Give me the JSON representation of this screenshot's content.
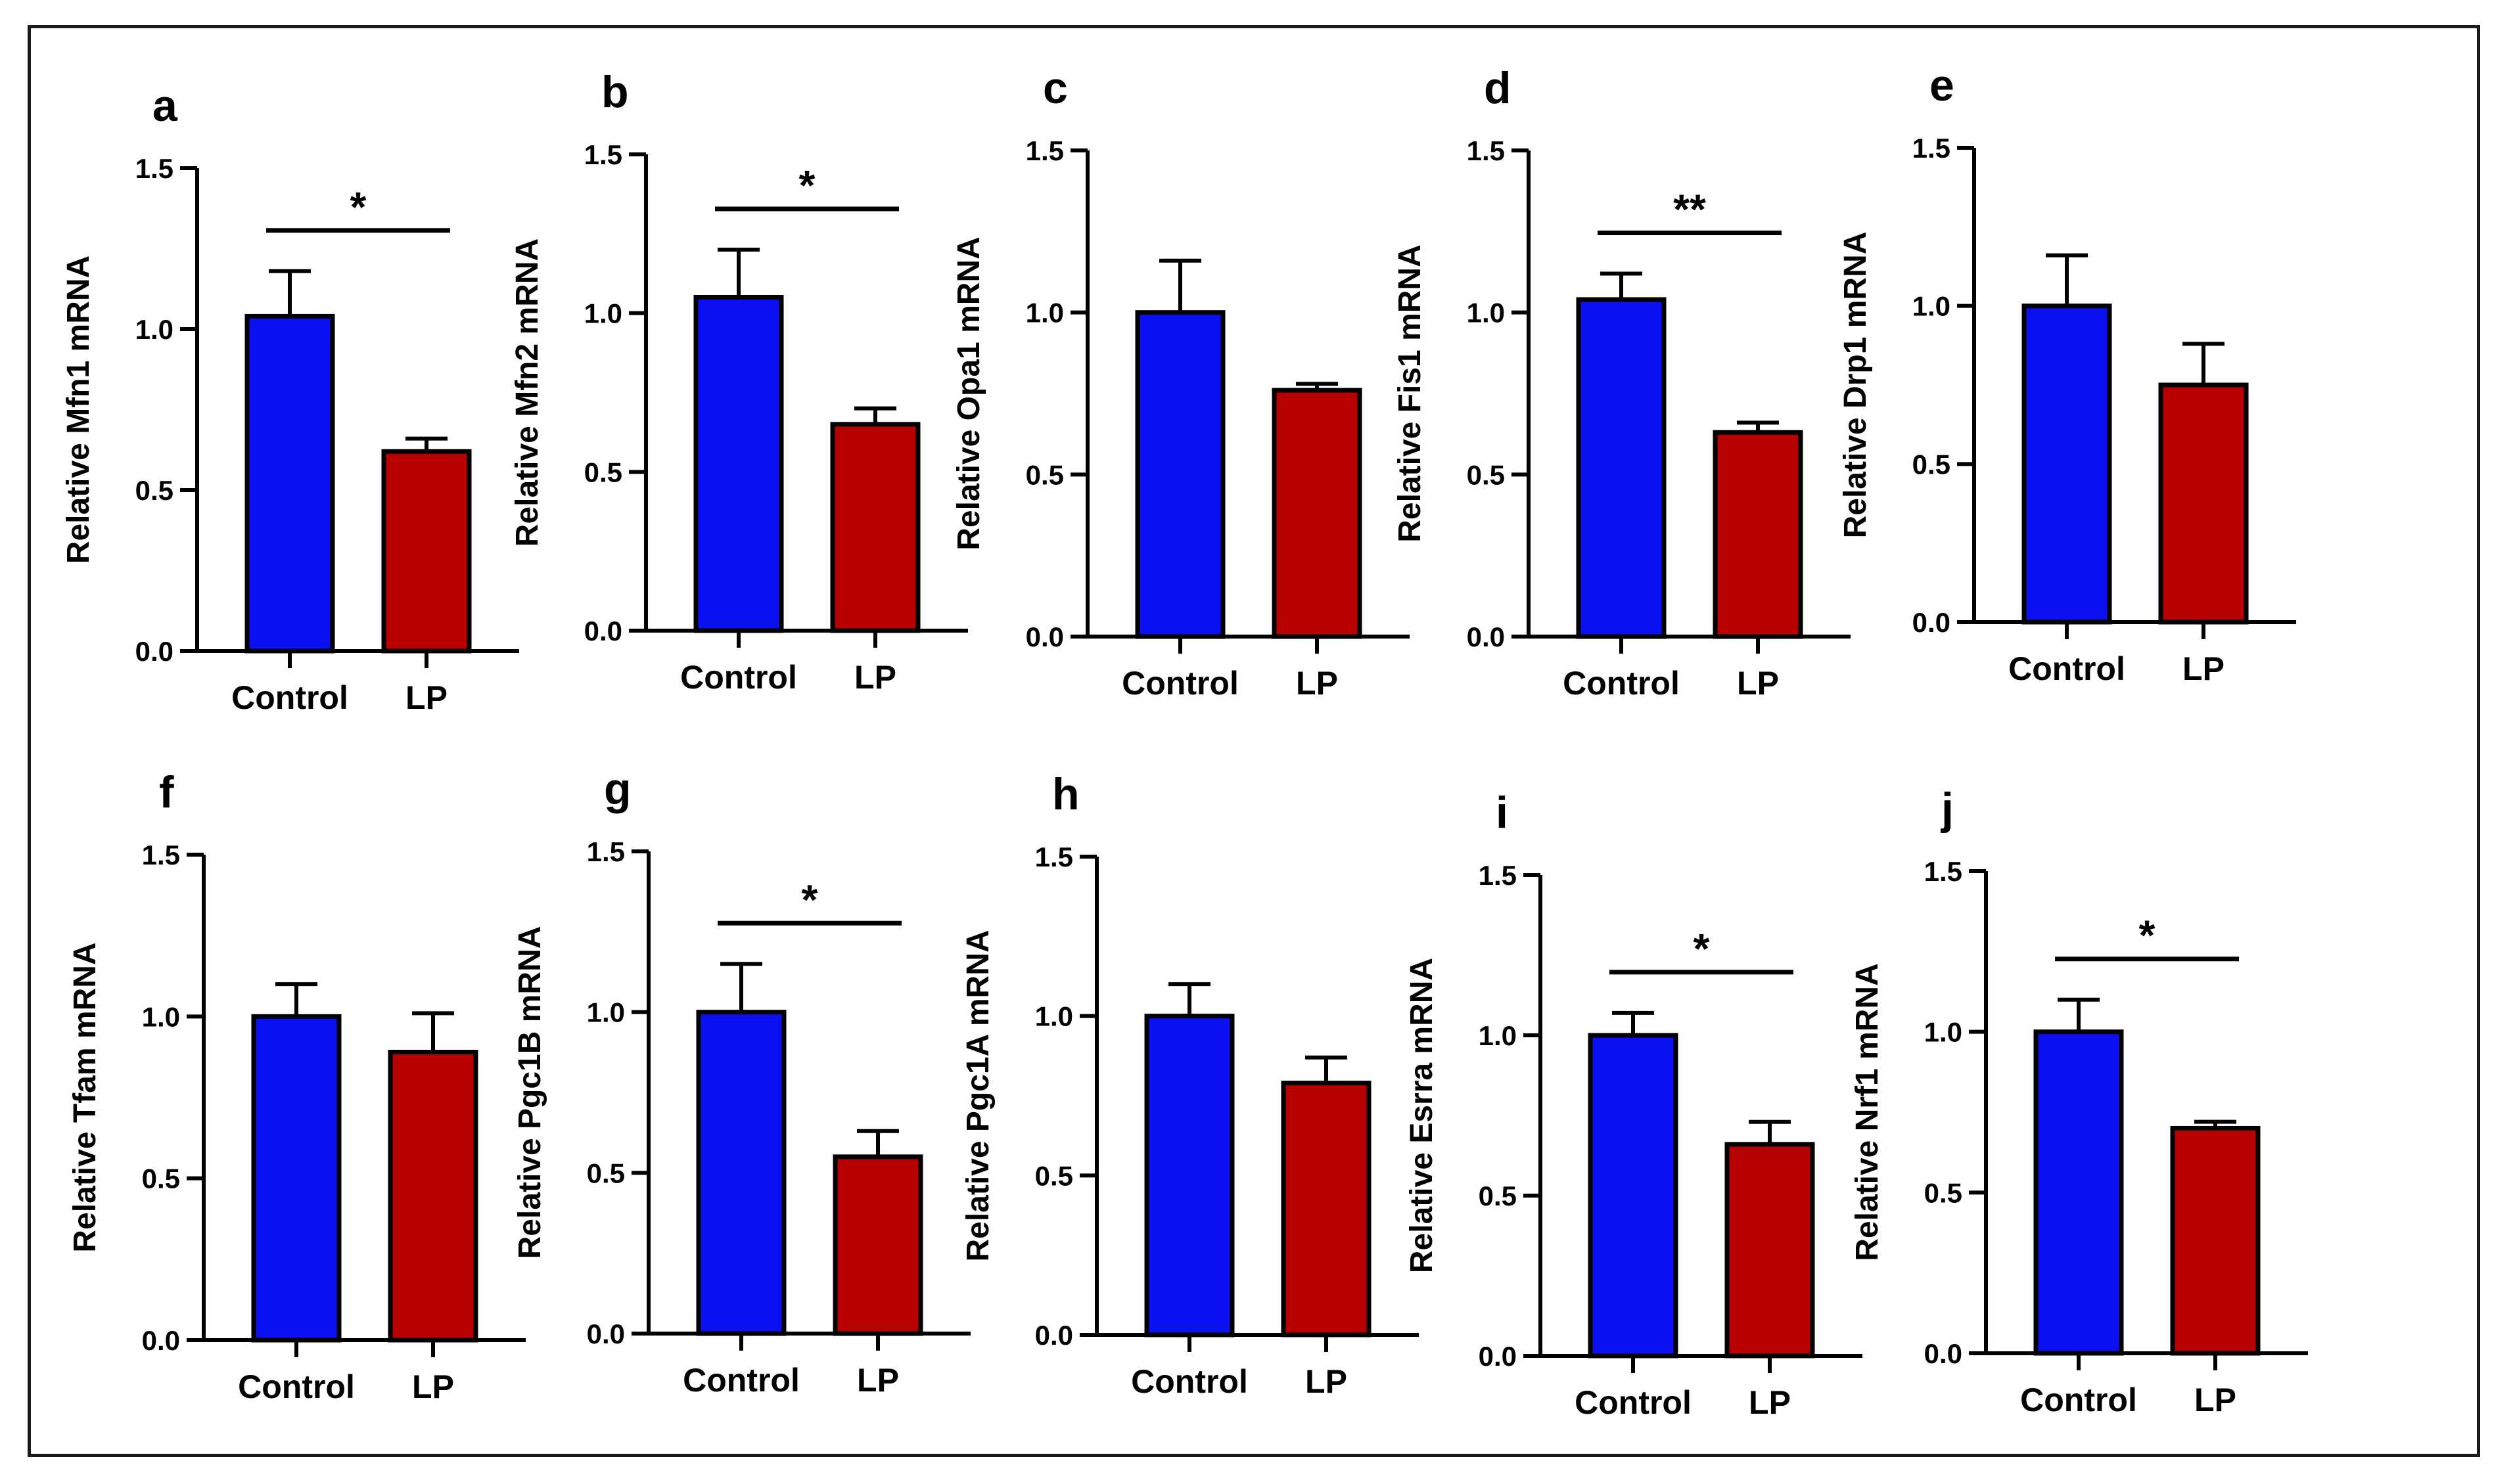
{
  "figure": {
    "colors": {
      "control": "#0a10f0",
      "lp": "#b70000",
      "axis": "#000000"
    }
  },
  "chart_data": [
    {
      "panel": "a",
      "type": "bar",
      "categories": [
        "Control",
        "LP"
      ],
      "values": [
        1.04,
        0.62
      ],
      "errors": [
        0.14,
        0.04
      ],
      "ylabel": "Relative Mfn1 mRNA",
      "ylim": [
        0,
        1.5
      ],
      "yticks": [
        "0.0",
        "0.5",
        "1.0",
        "1.5"
      ],
      "significance": "*"
    },
    {
      "panel": "b",
      "type": "bar",
      "categories": [
        "Control",
        "LP"
      ],
      "values": [
        1.05,
        0.65
      ],
      "errors": [
        0.15,
        0.05
      ],
      "ylabel": "Relative Mfn2 mRNA",
      "ylim": [
        0,
        1.5
      ],
      "yticks": [
        "0.0",
        "0.5",
        "1.0",
        "1.5"
      ],
      "significance": "*"
    },
    {
      "panel": "c",
      "type": "bar",
      "categories": [
        "Control",
        "LP"
      ],
      "values": [
        1.0,
        0.76
      ],
      "errors": [
        0.16,
        0.02
      ],
      "ylabel": "Relative Opa1 mRNA",
      "ylim": [
        0,
        1.5
      ],
      "yticks": [
        "0.0",
        "0.5",
        "1.0",
        "1.5"
      ],
      "significance": ""
    },
    {
      "panel": "d",
      "type": "bar",
      "categories": [
        "Control",
        "LP"
      ],
      "values": [
        1.04,
        0.63
      ],
      "errors": [
        0.08,
        0.03
      ],
      "ylabel": "Relative Fis1 mRNA",
      "ylim": [
        0,
        1.5
      ],
      "yticks": [
        "0.0",
        "0.5",
        "1.0",
        "1.5"
      ],
      "significance": "**"
    },
    {
      "panel": "e",
      "type": "bar",
      "categories": [
        "Control",
        "LP"
      ],
      "values": [
        1.0,
        0.75
      ],
      "errors": [
        0.16,
        0.13
      ],
      "ylabel": "Relative Drp1 mRNA",
      "ylim": [
        0,
        1.5
      ],
      "yticks": [
        "0.0",
        "0.5",
        "1.0",
        "1.5"
      ],
      "significance": ""
    },
    {
      "panel": "f",
      "type": "bar",
      "categories": [
        "Control",
        "LP"
      ],
      "values": [
        1.0,
        0.89
      ],
      "errors": [
        0.1,
        0.12
      ],
      "ylabel": "Relative Tfam mRNA",
      "ylim": [
        0,
        1.5
      ],
      "yticks": [
        "0.0",
        "0.5",
        "1.0",
        "1.5"
      ],
      "significance": ""
    },
    {
      "panel": "g",
      "type": "bar",
      "categories": [
        "Control",
        "LP"
      ],
      "values": [
        1.0,
        0.55
      ],
      "errors": [
        0.15,
        0.08
      ],
      "ylabel": "Relative Pgc1B mRNA",
      "ylim": [
        0,
        1.5
      ],
      "yticks": [
        "0.0",
        "0.5",
        "1.0",
        "1.5"
      ],
      "significance": "*"
    },
    {
      "panel": "h",
      "type": "bar",
      "categories": [
        "Control",
        "LP"
      ],
      "values": [
        1.0,
        0.79
      ],
      "errors": [
        0.1,
        0.08
      ],
      "ylabel": "Relative Pgc1A mRNA",
      "ylim": [
        0,
        1.5
      ],
      "yticks": [
        "0.0",
        "0.5",
        "1.0",
        "1.5"
      ],
      "significance": ""
    },
    {
      "panel": "i",
      "type": "bar",
      "categories": [
        "Control",
        "LP"
      ],
      "values": [
        1.0,
        0.66
      ],
      "errors": [
        0.07,
        0.07
      ],
      "ylabel": "Relative Esrra mRNA",
      "ylim": [
        0,
        1.5
      ],
      "yticks": [
        "0.0",
        "0.5",
        "1.0",
        "1.5"
      ],
      "significance": "*"
    },
    {
      "panel": "j",
      "type": "bar",
      "categories": [
        "Control",
        "LP"
      ],
      "values": [
        1.0,
        0.7
      ],
      "errors": [
        0.1,
        0.02
      ],
      "ylabel": "Relative Nrf1 mRNA",
      "ylim": [
        0,
        1.5
      ],
      "yticks": [
        "0.0",
        "0.5",
        "1.0",
        "1.5"
      ],
      "significance": "*"
    }
  ]
}
